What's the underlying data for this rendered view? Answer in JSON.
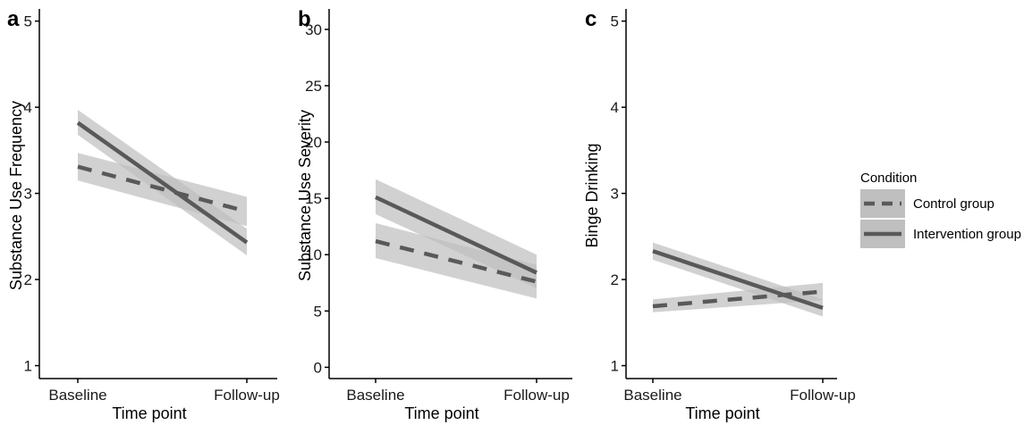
{
  "legend": {
    "title": "Condition",
    "entries": [
      {
        "label": "Control group",
        "dash": "dashed"
      },
      {
        "label": "Intervention group",
        "dash": "solid"
      }
    ]
  },
  "colors": {
    "line": "#595959",
    "ribbon": "#bfbfbf",
    "axis": "#000000"
  },
  "chart_data": [
    {
      "type": "line",
      "panel_label": "a",
      "xlabel": "Time point",
      "ylabel": "Substance Use Frequency",
      "categories": [
        "Baseline",
        "Follow-up"
      ],
      "ylim": [
        0.85,
        5.1
      ],
      "yticks": [
        1,
        2,
        3,
        4,
        5
      ],
      "series": [
        {
          "name": "Control group",
          "values": [
            3.31,
            2.79
          ],
          "lower": [
            3.15,
            2.62
          ],
          "upper": [
            3.47,
            2.96
          ]
        },
        {
          "name": "Intervention group",
          "values": [
            3.82,
            2.43
          ],
          "lower": [
            3.68,
            2.28
          ],
          "upper": [
            3.97,
            2.59
          ]
        }
      ]
    },
    {
      "type": "line",
      "panel_label": "b",
      "xlabel": "Time point",
      "ylabel": "Substance Use Severity",
      "categories": [
        "Baseline",
        "Follow-up"
      ],
      "ylim": [
        -1,
        31.5
      ],
      "yticks": [
        0,
        5,
        10,
        15,
        20,
        25,
        30
      ],
      "series": [
        {
          "name": "Control group",
          "values": [
            11.2,
            7.6
          ],
          "lower": [
            9.7,
            6.1
          ],
          "upper": [
            12.8,
            9.1
          ]
        },
        {
          "name": "Intervention group",
          "values": [
            15.1,
            8.4
          ],
          "lower": [
            13.6,
            7.0
          ],
          "upper": [
            16.7,
            10.0
          ]
        }
      ]
    },
    {
      "type": "line",
      "panel_label": "c",
      "xlabel": "Time point",
      "ylabel": "Binge Drinking",
      "categories": [
        "Baseline",
        "Follow-up"
      ],
      "ylim": [
        0.85,
        5.1
      ],
      "yticks": [
        1,
        2,
        3,
        4,
        5
      ],
      "series": [
        {
          "name": "Control group",
          "values": [
            1.69,
            1.86
          ],
          "lower": [
            1.62,
            1.76
          ],
          "upper": [
            1.77,
            1.96
          ]
        },
        {
          "name": "Intervention group",
          "values": [
            2.33,
            1.67
          ],
          "lower": [
            2.23,
            1.57
          ],
          "upper": [
            2.43,
            1.77
          ]
        }
      ]
    }
  ]
}
